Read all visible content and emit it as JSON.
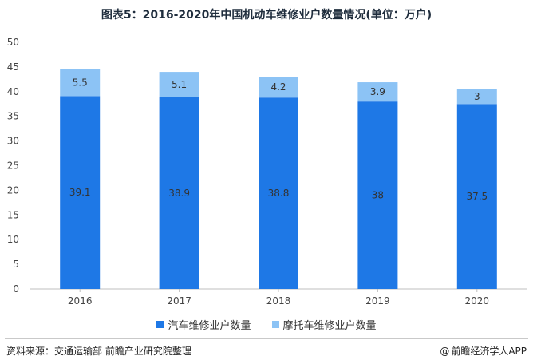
{
  "title": "图表5：2016-2020年中国机动车维修业户数量情况(单位：万户)",
  "footer": {
    "source": "资料来源：交通运输部 前瞻产业研究院整理",
    "brand": "前瞻经济学人APP",
    "brand_icon": "at-icon"
  },
  "colors": {
    "series_auto": "#1e78e6",
    "series_moto": "#8cc3f5",
    "axis": "#bfbfbf",
    "label_text": "#333333"
  },
  "chart_data": {
    "type": "bar",
    "stacked": true,
    "title": "图表5：2016-2020年中国机动车维修业户数量情况(单位：万户)",
    "xlabel": "",
    "ylabel": "",
    "categories": [
      "2016",
      "2017",
      "2018",
      "2019",
      "2020"
    ],
    "ylim": [
      0,
      50
    ],
    "yticks": [
      0,
      5,
      10,
      15,
      20,
      25,
      30,
      35,
      40,
      45,
      50
    ],
    "grid": false,
    "legend_position": "bottom",
    "series": [
      {
        "name": "汽车维修业户数量",
        "values": [
          39.1,
          38.9,
          38.8,
          38,
          37.5
        ],
        "labels": [
          "39.1",
          "38.9",
          "38.8",
          "38",
          "37.5"
        ]
      },
      {
        "name": "摩托车维修业户数量",
        "values": [
          5.5,
          5.1,
          4.2,
          3.9,
          3
        ],
        "labels": [
          "5.5",
          "5.1",
          "4.2",
          "3.9",
          "3"
        ]
      }
    ]
  }
}
